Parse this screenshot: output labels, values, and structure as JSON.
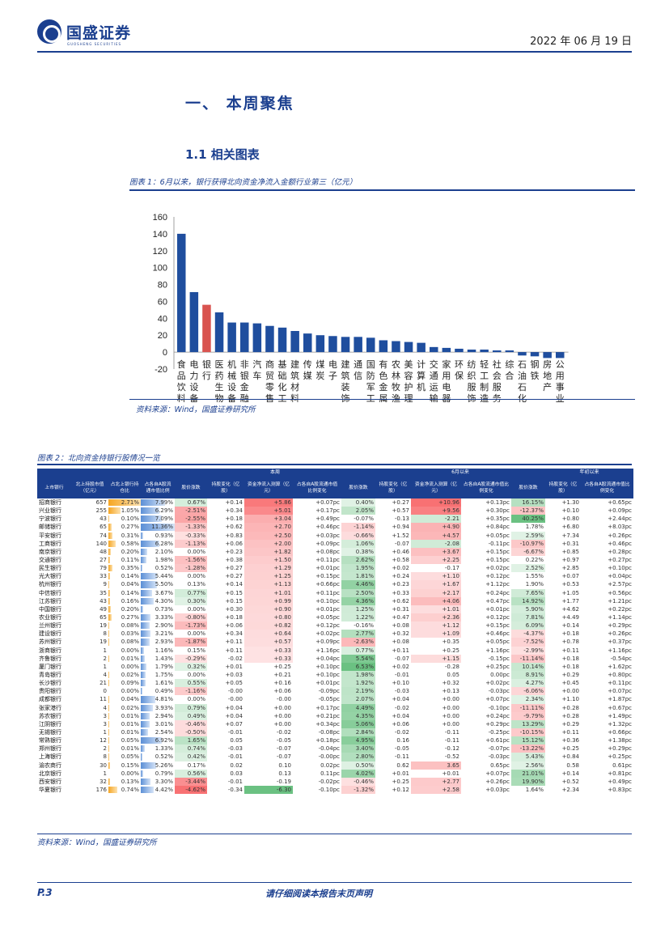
{
  "header": {
    "brand": "国盛证券",
    "brand_sub": "GUOSHENG SECURITIES",
    "date": "2022 年 06 月 19 日"
  },
  "section": {
    "h1": "一、  本周聚焦",
    "h2": "1.1 相关图表"
  },
  "fig1": {
    "title": "图表 1：6月以来，银行获得北向资金净流入金额行业第三（亿元）",
    "source": "资料来源：Wind，国盛证券研究所"
  },
  "chart_data": {
    "type": "bar",
    "title": "6月以来，银行获得北向资金净流入金额行业第三（亿元）",
    "xlabel": "",
    "ylabel": "亿元",
    "ylim": [
      -20,
      160
    ],
    "yticks": [
      160,
      140,
      120,
      100,
      80,
      60,
      40,
      20,
      0,
      -20
    ],
    "highlight_color": "#d9534f",
    "bar_color": "#1f4e9e",
    "categories": [
      "食品饮料",
      "电力设备",
      "银行",
      "医药生物",
      "机械设备",
      "非银金融",
      "汽车",
      "商贸零售",
      "基础化工",
      "建筑材料",
      "传媒",
      "煤炭",
      "电子",
      "建筑装饰",
      "通信",
      "国防军工",
      "有色金属",
      "农林牧渔",
      "美容护理",
      "计算机",
      "交通运输",
      "家用电器",
      "环保",
      "纺织服饰",
      "轻工制造",
      "社会服务",
      "综合",
      "石油石化",
      "钢铁",
      "房地产",
      "公用事业"
    ],
    "values": [
      140,
      71,
      56,
      47,
      35,
      35,
      34,
      31,
      29,
      25,
      22,
      20,
      19,
      18,
      18,
      17,
      14,
      13,
      12,
      11,
      6,
      5,
      4,
      3,
      3,
      2,
      2,
      -4,
      -5,
      -7,
      -7
    ],
    "highlight": [
      2
    ]
  },
  "fig2": {
    "title": "图表 2：北向资金持银行股情况一览",
    "source": "资料来源：Wind，国盛证券研究所"
  },
  "table": {
    "groups": [
      "",
      "本周",
      "6月以来",
      "年初以来"
    ],
    "headers": [
      "上市银行",
      "北上持股市值（亿元）",
      "占北上银行持仓比",
      "占各自A股流通市值比例",
      "股价涨跌",
      "持股变化（亿股）",
      "资金净流入测算（亿元）",
      "占各自A股流通市值比例变化",
      "股价涨跌",
      "持股变化（亿股）",
      "资金净流入测算（亿元）",
      "占各自A股流通市值比例变化",
      "股价涨跌",
      "持股变化（亿股）",
      "占各自A股流通市值比例变化"
    ],
    "rows": [
      [
        "招商银行",
        "657",
        "2.71%",
        "7.99%",
        "0.67%",
        "+0.14",
        "+5.86",
        "+0.07pc",
        "0.40%",
        "+0.27",
        "+10.96",
        "+0.13pc",
        "16.15%",
        "+1.30",
        "+0.65pc"
      ],
      [
        "兴业银行",
        "255",
        "1.05%",
        "6.29%",
        "-2.51%",
        "+0.34",
        "+5.01",
        "+0.17pc",
        "2.05%",
        "+0.57",
        "+9.56",
        "+0.30pc",
        "-12.37%",
        "+0.10",
        "+0.09pc"
      ],
      [
        "宁波银行",
        "43",
        "0.10%",
        "7.09%",
        "-2.55%",
        "+0.18",
        "+3.04",
        "+0.49pc",
        "-0.07%",
        "-0.13",
        "-2.21",
        "+0.35pc",
        "40.25%",
        "+0.80",
        "+2.44pc"
      ],
      [
        "邮储银行",
        "65",
        "0.27%",
        "11.36%",
        "-1.33%",
        "+0.62",
        "+2.70",
        "+0.46pc",
        "-1.14%",
        "+0.94",
        "+4.90",
        "+0.84pc",
        "1.78%",
        "+6.80",
        "+8.03pc"
      ],
      [
        "平安银行",
        "74",
        "0.31%",
        "0.93%",
        "-0.33%",
        "+0.83",
        "+2.50",
        "+0.03pc",
        "-0.66%",
        "+1.52",
        "+4.57",
        "+0.05pc",
        "2.59%",
        "+7.34",
        "+0.26pc"
      ],
      [
        "工商银行",
        "140",
        "0.58%",
        "6.28%",
        "-1.13%",
        "+0.06",
        "+2.00",
        "+0.09pc",
        "1.06%",
        "-0.07",
        "-2.08",
        "-0.11pc",
        "-10.97%",
        "+0.31",
        "+0.46pc"
      ],
      [
        "南京银行",
        "48",
        "0.20%",
        "2.10%",
        "0.00%",
        "+0.23",
        "+1.82",
        "+0.08pc",
        "0.38%",
        "+0.46",
        "+3.67",
        "+0.15pc",
        "-6.67%",
        "+0.85",
        "+0.28pc"
      ],
      [
        "交通银行",
        "27",
        "0.11%",
        "1.98%",
        "-1.56%",
        "+0.38",
        "+1.50",
        "+0.11pc",
        "2.62%",
        "+0.58",
        "+2.25",
        "+0.15pc",
        "0.22%",
        "+0.97",
        "+0.27pc"
      ],
      [
        "民生银行",
        "79",
        "0.35%",
        "0.52%",
        "-1.28%",
        "+0.27",
        "+1.29",
        "+0.01pc",
        "1.95%",
        "+0.02",
        "-0.17",
        "+0.02pc",
        "2.52%",
        "+2.85",
        "+0.10pc"
      ],
      [
        "光大银行",
        "33",
        "0.14%",
        "5.44%",
        "0.00%",
        "+0.27",
        "+1.25",
        "+0.15pc",
        "1.81%",
        "+0.24",
        "+1.10",
        "+0.12pc",
        "1.55%",
        "+0.07",
        "+0.04pc"
      ],
      [
        "杭州银行",
        "9",
        "0.04%",
        "5.50%",
        "0.13%",
        "+0.14",
        "+1.13",
        "+0.66pc",
        "4.46%",
        "+0.23",
        "+1.67",
        "+1.12pc",
        "1.90%",
        "+0.53",
        "+2.57pc"
      ],
      [
        "中信银行",
        "35",
        "0.14%",
        "3.67%",
        "0.77%",
        "+0.15",
        "+1.01",
        "+0.11pc",
        "2.50%",
        "+0.33",
        "+2.17",
        "+0.24pc",
        "7.65%",
        "+1.05",
        "+0.56pc"
      ],
      [
        "江苏银行",
        "43",
        "0.16%",
        "4.30%",
        "0.30%",
        "+0.15",
        "+0.99",
        "+0.10pc",
        "4.36%",
        "+0.62",
        "+4.06",
        "+0.47pc",
        "14.92%",
        "+1.77",
        "+1.21pc"
      ],
      [
        "中国银行",
        "49",
        "0.20%",
        "0.73%",
        "0.00%",
        "+0.30",
        "+0.90",
        "+0.01pc",
        "1.25%",
        "+0.31",
        "+1.01",
        "+0.01pc",
        "5.90%",
        "+4.62",
        "+0.22pc"
      ],
      [
        "农业银行",
        "65",
        "0.27%",
        "3.33%",
        "-0.80%",
        "+0.18",
        "+0.80",
        "+0.05pc",
        "1.22%",
        "+0.47",
        "+2.36",
        "+0.12pc",
        "7.81%",
        "+4.49",
        "+1.14pc"
      ],
      [
        "兰州银行",
        "19",
        "0.08%",
        "2.90%",
        "-1.73%",
        "+0.06",
        "+0.82",
        "+0.12pc",
        "-0.16%",
        "+0.08",
        "+1.12",
        "+0.15pc",
        "6.09%",
        "+0.14",
        "+0.29pc"
      ],
      [
        "建设银行",
        "8",
        "0.03%",
        "3.21%",
        "0.00%",
        "+0.34",
        "+0.64",
        "+0.02pc",
        "2.77%",
        "+0.32",
        "+1.09",
        "+0.46pc",
        "-4.37%",
        "+0.18",
        "+0.26pc"
      ],
      [
        "苏州银行",
        "19",
        "0.08%",
        "2.93%",
        "-1.87%",
        "+0.11",
        "+0.57",
        "+0.09pc",
        "-2.63%",
        "+0.08",
        "+0.35",
        "+0.05pc",
        "-7.52%",
        "+0.78",
        "+0.37pc"
      ],
      [
        "浙商银行",
        "1",
        "0.00%",
        "1.16%",
        "0.15%",
        "+0.11",
        "+0.33",
        "+1.16pc",
        "0.77%",
        "+0.11",
        "+0.25",
        "+1.16pc",
        "-2.99%",
        "+0.11",
        "+1.16pc"
      ],
      [
        "齐鲁银行",
        "2",
        "0.01%",
        "1.43%",
        "-0.29%",
        "-0.02",
        "+0.33",
        "+0.04pc",
        "5.54%",
        "-0.07",
        "+1.15",
        "-0.15pc",
        "-11.14%",
        "+0.18",
        "-0.54pc"
      ],
      [
        "厦门银行",
        "1",
        "0.00%",
        "1.79%",
        "0.32%",
        "+0.01",
        "+0.25",
        "+0.10pc",
        "6.53%",
        "+0.02",
        "-0.28",
        "+0.25pc",
        "10.14%",
        "+0.18",
        "+1.62pc"
      ],
      [
        "青岛银行",
        "4",
        "0.02%",
        "1.75%",
        "0.00%",
        "+0.03",
        "+0.21",
        "+0.10pc",
        "1.98%",
        "-0.01",
        "0.05",
        "0.00pc",
        "8.91%",
        "+0.29",
        "+0.80pc"
      ],
      [
        "长沙银行",
        "21",
        "0.09%",
        "1.61%",
        "0.55%",
        "+0.05",
        "+0.16",
        "+0.01pc",
        "1.92%",
        "+0.10",
        "+0.32",
        "+0.02pc",
        "4.27%",
        "+0.45",
        "+0.11pc"
      ],
      [
        "贵阳银行",
        "0",
        "0.00%",
        "0.49%",
        "-1.16%",
        "-0.00",
        "+0.06",
        "-0.09pc",
        "2.19%",
        "-0.03",
        "+0.13",
        "-0.03pc",
        "-6.06%",
        "+0.00",
        "+0.07pc"
      ],
      [
        "成都银行",
        "11",
        "0.04%",
        "4.81%",
        "0.00%",
        "-0.00",
        "-0.00",
        "-0.05pc",
        "2.07%",
        "+0.04",
        "+0.00",
        "+0.07pc",
        "2.34%",
        "+1.10",
        "+1.87pc"
      ],
      [
        "张家港行",
        "4",
        "0.02%",
        "3.93%",
        "0.79%",
        "+0.04",
        "+0.00",
        "+0.17pc",
        "4.49%",
        "-0.02",
        "+0.00",
        "-0.10pc",
        "-11.11%",
        "+0.28",
        "+0.67pc"
      ],
      [
        "苏农银行",
        "3",
        "0.01%",
        "2.94%",
        "0.49%",
        "+0.04",
        "+0.00",
        "+0.21pc",
        "4.35%",
        "+0.04",
        "+0.00",
        "+0.24pc",
        "-9.79%",
        "+0.28",
        "+1.49pc"
      ],
      [
        "江阴银行",
        "3",
        "0.01%",
        "3.01%",
        "-0.46%",
        "+0.07",
        "+0.00",
        "+0.34pc",
        "5.06%",
        "+0.06",
        "+0.00",
        "+0.29pc",
        "13.29%",
        "+0.29",
        "+1.32pc"
      ],
      [
        "无锡银行",
        "1",
        "0.01%",
        "2.54%",
        "-0.50%",
        "-0.01",
        "-0.02",
        "-0.08pc",
        "2.84%",
        "-0.02",
        "-0.11",
        "-0.25pc",
        "-10.15%",
        "+0.11",
        "+0.66pc"
      ],
      [
        "常熟银行",
        "12",
        "0.05%",
        "6.92%",
        "1.65%",
        "0.05",
        "-0.05",
        "+0.18pc",
        "4.95%",
        "0.16",
        "-0.11",
        "+0.61pc",
        "15.12%",
        "+0.36",
        "+1.38pc"
      ],
      [
        "郑州银行",
        "2",
        "0.01%",
        "1.33%",
        "0.74%",
        "-0.03",
        "-0.07",
        "-0.04pc",
        "3.40%",
        "-0.05",
        "-0.12",
        "-0.07pc",
        "-13.22%",
        "+0.25",
        "+0.29pc"
      ],
      [
        "上海银行",
        "8",
        "0.05%",
        "0.52%",
        "0.42%",
        "-0.01",
        "-0.07",
        "-0.00pc",
        "2.80%",
        "-0.11",
        "-0.52",
        "-0.03pc",
        "5.43%",
        "+0.84",
        "+0.25pc"
      ],
      [
        "渝农商行",
        "30",
        "0.15%",
        "5.26%",
        "0.17%",
        "0.02",
        "0.10",
        "0.02pc",
        "0.50%",
        "0.62",
        "3.65",
        "0.65pc",
        "2.56%",
        "0.58",
        "0.61pc"
      ],
      [
        "北京银行",
        "1",
        "0.00%",
        "0.79%",
        "0.56%",
        "0.03",
        "0.13",
        "0.11pc",
        "4.02%",
        "+0.01",
        "+0.01",
        "+0.07pc",
        "21.01%",
        "+0.14",
        "+0.81pc"
      ],
      [
        "西安银行",
        "32",
        "0.13%",
        "3.30%",
        "-3.44%",
        "-0.01",
        "-0.19",
        "-0.02pc",
        "-0.46%",
        "+0.25",
        "+2.77",
        "+0.26pc",
        "19.90%",
        "+0.52",
        "+0.49pc"
      ],
      [
        "华夏银行",
        "176",
        "0.74%",
        "4.42%",
        "-4.62%",
        "-0.34",
        "-6.30",
        "-0.10pc",
        "-1.32%",
        "+0.12",
        "+2.58",
        "+0.03pc",
        "1.64%",
        "+2.34",
        "+0.83pc"
      ]
    ]
  },
  "footer": {
    "page": "P.3",
    "disclaimer": "请仔细阅读本报告末页声明"
  }
}
